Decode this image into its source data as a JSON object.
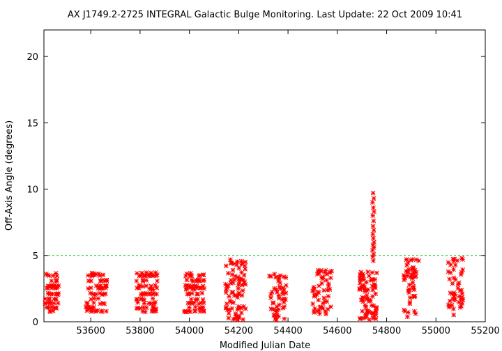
{
  "chart_data": {
    "type": "scatter",
    "title": "AX J1749.2-2725   INTEGRAL Galactic Bulge Monitoring.  Last Update: 22 Oct 2009 10:41",
    "xlabel": "Modified Julian Date",
    "ylabel": "Off-Axis Angle (degrees)",
    "xlim": [
      53410,
      55200
    ],
    "ylim": [
      0,
      22
    ],
    "xticks": [
      53600,
      53800,
      54000,
      54200,
      54400,
      54600,
      54800,
      55000,
      55200
    ],
    "yticks": [
      0,
      5,
      10,
      15,
      20
    ],
    "threshold": 5,
    "colors": {
      "points": "#ff0000",
      "threshold": "#00c800",
      "axes": "#000000"
    },
    "grid": false,
    "legend": "none",
    "clusters": [
      {
        "xmin": 53415,
        "xmax": 53470,
        "ymin": 0.7,
        "ymax": 3.8,
        "count": 55,
        "rows": true
      },
      {
        "xmin": 53580,
        "xmax": 53665,
        "ymin": 0.6,
        "ymax": 3.7,
        "count": 70,
        "rows": true
      },
      {
        "xmin": 53785,
        "xmax": 53870,
        "ymin": 0.6,
        "ymax": 3.7,
        "count": 75,
        "rows": true
      },
      {
        "xmin": 53980,
        "xmax": 54065,
        "ymin": 0.6,
        "ymax": 3.7,
        "count": 75,
        "rows": true
      },
      {
        "xmin": 54145,
        "xmax": 54230,
        "ymin": 0.1,
        "ymax": 4.7,
        "count": 80,
        "rows": false
      },
      {
        "xmin": 54325,
        "xmax": 54395,
        "ymin": 0.1,
        "ymax": 3.7,
        "count": 50,
        "rows": false
      },
      {
        "xmin": 54500,
        "xmax": 54580,
        "ymin": 0.5,
        "ymax": 4.0,
        "count": 55,
        "rows": false
      },
      {
        "xmin": 54690,
        "xmax": 54760,
        "ymin": 0.1,
        "ymax": 3.8,
        "count": 80,
        "rows": false
      },
      {
        "xmin": 54870,
        "xmax": 54925,
        "ymin": 0.3,
        "ymax": 4.7,
        "count": 50,
        "rows": false
      },
      {
        "xmin": 55050,
        "xmax": 55115,
        "ymin": 0.5,
        "ymax": 4.8,
        "count": 45,
        "rows": false
      }
    ],
    "extra_points": [
      [
        54745,
        9.7
      ],
      [
        54748,
        9.3
      ],
      [
        54743,
        9.0
      ],
      [
        54746,
        8.6
      ],
      [
        54749,
        8.3
      ],
      [
        54744,
        8.0
      ],
      [
        54747,
        7.6
      ],
      [
        54745,
        7.2
      ],
      [
        54748,
        6.9
      ],
      [
        54744,
        6.6
      ],
      [
        54746,
        6.3
      ],
      [
        54749,
        6.0
      ],
      [
        54745,
        5.8
      ],
      [
        54748,
        5.6
      ],
      [
        54743,
        5.4
      ],
      [
        54747,
        5.1
      ],
      [
        54744,
        4.9
      ],
      [
        54746,
        4.6
      ],
      [
        54905,
        4.7
      ],
      [
        54930,
        4.6
      ],
      [
        55105,
        4.8
      ],
      [
        55108,
        4.7
      ],
      [
        55060,
        4.3
      ]
    ]
  }
}
